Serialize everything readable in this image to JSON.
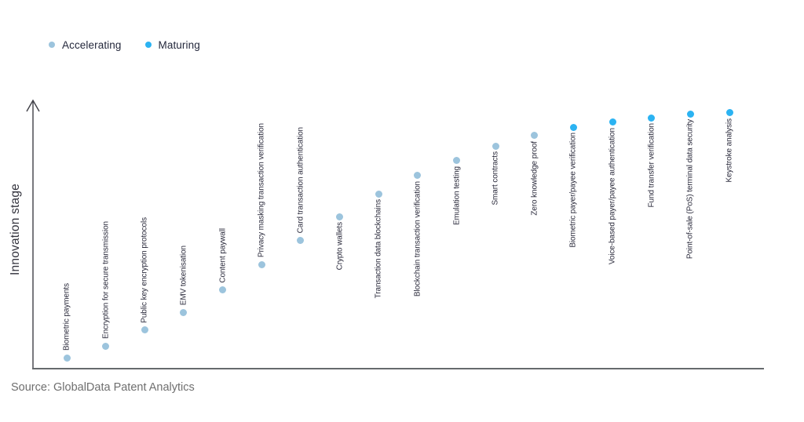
{
  "legend": {
    "items": [
      {
        "label": "Accelerating",
        "color": "#9CC4DD"
      },
      {
        "label": "Maturing",
        "color": "#2BB3F2"
      }
    ]
  },
  "axis": {
    "y_title": "Innovation stage"
  },
  "source": "Source: GlobalData Patent Analytics",
  "chart_data": {
    "type": "scatter",
    "title": "",
    "xlabel": "",
    "ylabel": "Innovation stage",
    "legend_position": "top-left",
    "grid": false,
    "x_axis_labeled": false,
    "y_axis_labeled": false,
    "ylim_semantic": "unlabeled axis, higher = more mature innovation stage",
    "series_colors": {
      "Accelerating": "#9CC4DD",
      "Maturing": "#2BB3F2"
    },
    "points": [
      {
        "label": "Biometric payments",
        "stage": "Accelerating",
        "stage_score": 4,
        "label_position": "above"
      },
      {
        "label": "Encryption for secure transmission",
        "stage": "Accelerating",
        "stage_score": 8.5,
        "label_position": "above"
      },
      {
        "label": "Public key encryption protocols",
        "stage": "Accelerating",
        "stage_score": 14.5,
        "label_position": "above"
      },
      {
        "label": "EMV tokenisation",
        "stage": "Accelerating",
        "stage_score": 21,
        "label_position": "above"
      },
      {
        "label": "Content paywall",
        "stage": "Accelerating",
        "stage_score": 29.5,
        "label_position": "above"
      },
      {
        "label": "Privacy masking transaction verification",
        "stage": "Accelerating",
        "stage_score": 39,
        "label_position": "above"
      },
      {
        "label": "Card transaction authentication",
        "stage": "Accelerating",
        "stage_score": 48,
        "label_position": "above"
      },
      {
        "label": "Crypto wallets",
        "stage": "Accelerating",
        "stage_score": 57,
        "label_position": "below"
      },
      {
        "label": "Transaction data blockchains",
        "stage": "Accelerating",
        "stage_score": 65.5,
        "label_position": "below"
      },
      {
        "label": "Blockchain transaction verification",
        "stage": "Accelerating",
        "stage_score": 72.5,
        "label_position": "below"
      },
      {
        "label": "Emulation testing",
        "stage": "Accelerating",
        "stage_score": 78,
        "label_position": "below"
      },
      {
        "label": "Smart contracts",
        "stage": "Accelerating",
        "stage_score": 83.5,
        "label_position": "below"
      },
      {
        "label": "Zero knowledge proof",
        "stage": "Accelerating",
        "stage_score": 87.5,
        "label_position": "below"
      },
      {
        "label": "Biometric payer/payee verification",
        "stage": "Maturing",
        "stage_score": 90.5,
        "label_position": "below"
      },
      {
        "label": "Voice-based payer/payee authentication",
        "stage": "Maturing",
        "stage_score": 92.5,
        "label_position": "below"
      },
      {
        "label": "Fund transfer verification",
        "stage": "Maturing",
        "stage_score": 94,
        "label_position": "below"
      },
      {
        "label": "Point-of-sale (PoS) terminal data security",
        "stage": "Maturing",
        "stage_score": 95.5,
        "label_position": "below"
      },
      {
        "label": "Keystroke analysis",
        "stage": "Maturing",
        "stage_score": 96,
        "label_position": "below"
      }
    ]
  }
}
